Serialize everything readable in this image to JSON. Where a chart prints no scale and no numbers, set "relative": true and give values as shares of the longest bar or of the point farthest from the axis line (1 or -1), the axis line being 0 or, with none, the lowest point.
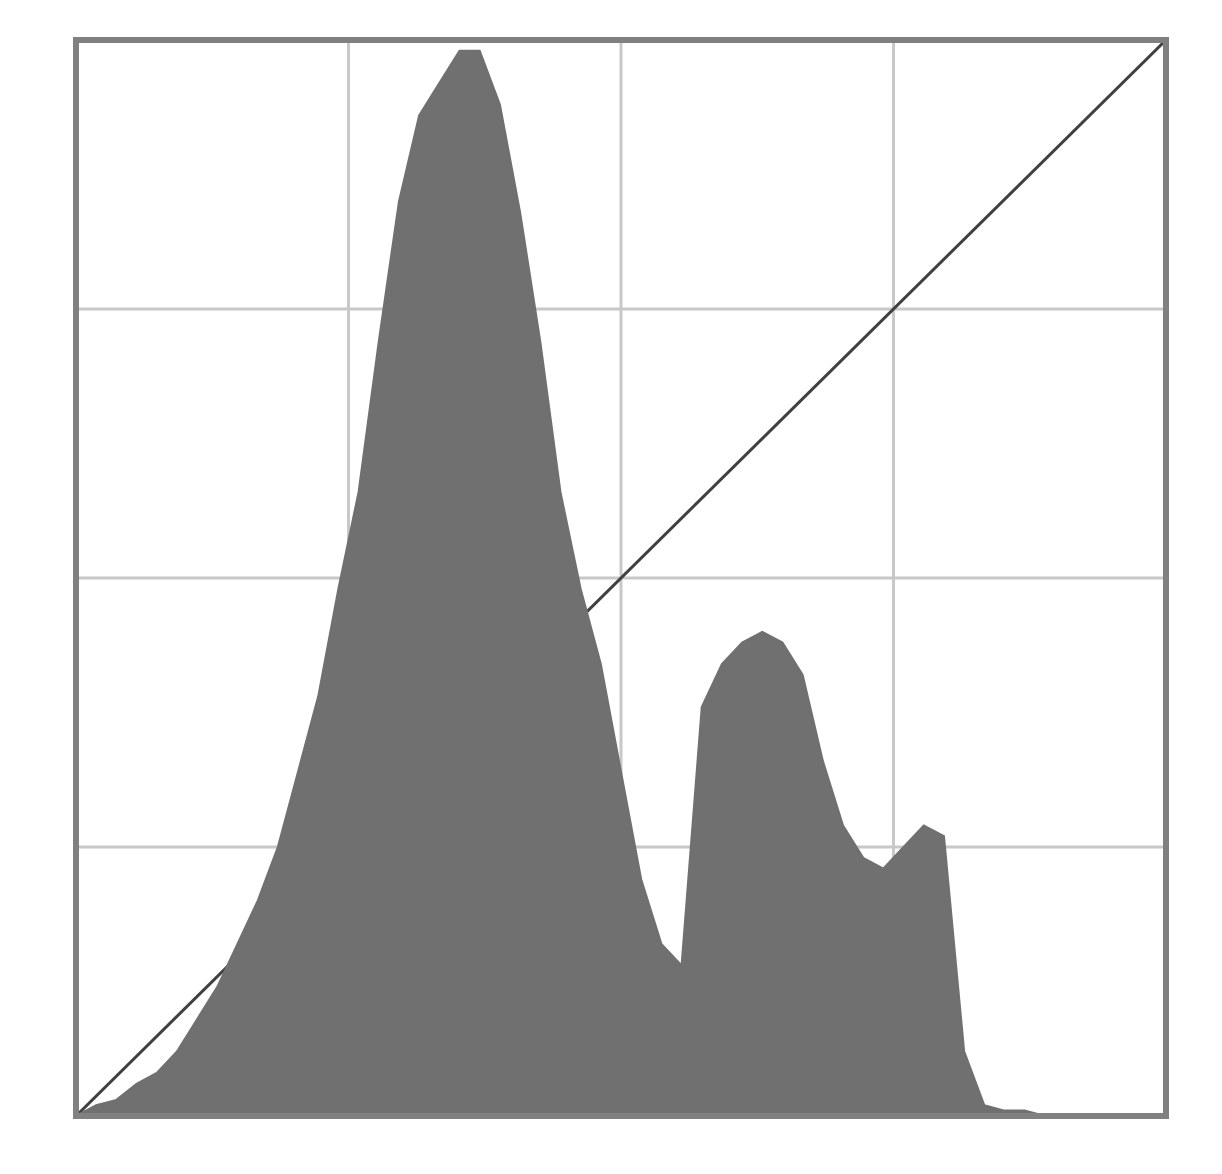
{
  "chart_data": {
    "type": "area",
    "relative": true,
    "grid": true,
    "categories": [
      null,
      null,
      null,
      null,
      null,
      null,
      null,
      null,
      null,
      null,
      null,
      null,
      null,
      null,
      null,
      null,
      null,
      null,
      null,
      null,
      null,
      null,
      null,
      null,
      null,
      null,
      null,
      null,
      null,
      null,
      null,
      null,
      null,
      null,
      null,
      null,
      null,
      null,
      null,
      null,
      null,
      null,
      null,
      null,
      null,
      null,
      null,
      null,
      null,
      null,
      null,
      null,
      null,
      null,
      null
    ],
    "series": [
      {
        "color": "#707070",
        "values": [
          0,
          0.01,
          0.015,
          0.03,
          0.04,
          0.06,
          0.09,
          0.12,
          0.16,
          0.2,
          0.25,
          0.32,
          0.39,
          0.49,
          0.58,
          0.72,
          0.85,
          0.93,
          0.96,
          0.99,
          0.99,
          0.94,
          0.84,
          0.72,
          0.58,
          0.49,
          0.42,
          0.32,
          0.22,
          0.16,
          0.14,
          0.38,
          0.42,
          0.44,
          0.45,
          0.44,
          0.41,
          0.33,
          0.27,
          0.24,
          0.23,
          0.25,
          0.27,
          0.26,
          0.06,
          0.01,
          0.005,
          0.005,
          0,
          0,
          0,
          0,
          0,
          0,
          0
        ]
      },
      {
        "type": "line",
        "color": "#404040",
        "values": [
          0,
          null,
          null,
          null,
          null,
          null,
          null,
          null,
          null,
          null,
          null,
          null,
          null,
          null,
          null,
          null,
          null,
          null,
          null,
          null,
          null,
          null,
          null,
          null,
          null,
          null,
          null,
          null,
          null,
          null,
          null,
          null,
          null,
          null,
          null,
          null,
          null,
          null,
          null,
          null,
          null,
          null,
          null,
          null,
          null,
          null,
          null,
          null,
          null,
          null,
          null,
          null,
          null,
          null,
          1
        ]
      }
    ]
  }
}
